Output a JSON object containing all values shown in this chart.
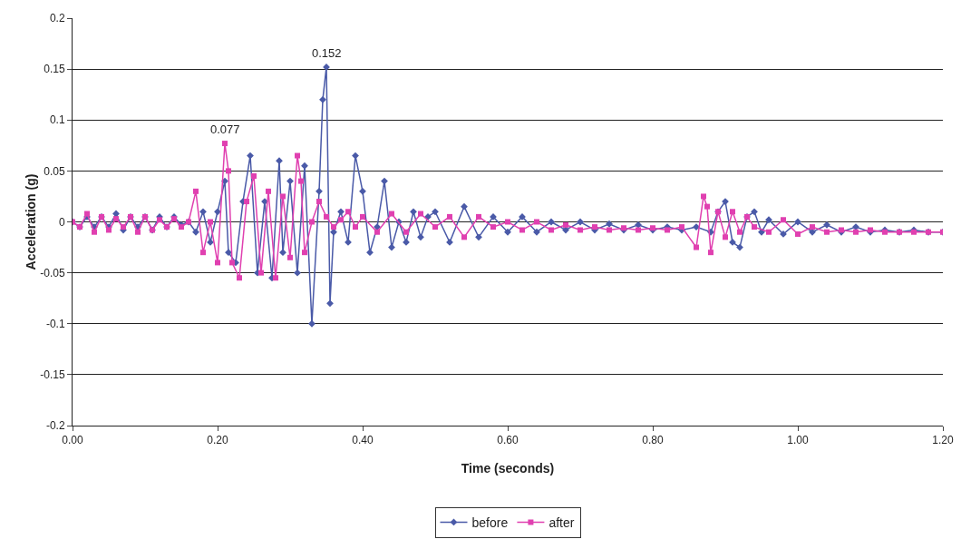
{
  "chart_data": {
    "type": "line",
    "xlabel": "Time (seconds)",
    "ylabel": "Acceleration (g)",
    "xlim": [
      0,
      1.2
    ],
    "xticks": [
      {
        "value": 0,
        "label": "0.00"
      },
      {
        "value": 0.2,
        "label": "0.20"
      },
      {
        "value": 0.4,
        "label": "0.40"
      },
      {
        "value": 0.6,
        "label": "0.60"
      },
      {
        "value": 0.8,
        "label": "0.80"
      },
      {
        "value": 1.0,
        "label": "1.00"
      },
      {
        "value": 1.2,
        "label": "1.20"
      }
    ],
    "ylim": [
      -0.2,
      0.2
    ],
    "yticks": [
      -0.2,
      -0.15,
      -0.1,
      -0.05,
      0,
      0.05,
      0.1,
      0.15,
      0.2
    ],
    "grid": "y",
    "legend": "bottom",
    "line_style": "solid",
    "annotations": [
      {
        "text": "0.152",
        "x": 0.35,
        "y": 0.152
      },
      {
        "text": "0.077",
        "x": 0.21,
        "y": 0.077
      }
    ],
    "series": [
      {
        "name": "before",
        "color": "#4a5aa8",
        "marker": "diamond",
        "x": [
          0,
          0.01,
          0.02,
          0.03,
          0.04,
          0.05,
          0.06,
          0.07,
          0.08,
          0.09,
          0.1,
          0.11,
          0.12,
          0.13,
          0.14,
          0.15,
          0.16,
          0.17,
          0.18,
          0.19,
          0.2,
          0.21,
          0.215,
          0.225,
          0.235,
          0.245,
          0.255,
          0.265,
          0.275,
          0.285,
          0.29,
          0.3,
          0.31,
          0.32,
          0.33,
          0.34,
          0.345,
          0.35,
          0.355,
          0.36,
          0.37,
          0.38,
          0.39,
          0.4,
          0.41,
          0.42,
          0.43,
          0.44,
          0.45,
          0.46,
          0.47,
          0.48,
          0.49,
          0.5,
          0.52,
          0.54,
          0.56,
          0.58,
          0.6,
          0.62,
          0.64,
          0.66,
          0.68,
          0.7,
          0.72,
          0.74,
          0.76,
          0.78,
          0.8,
          0.82,
          0.84,
          0.86,
          0.88,
          0.89,
          0.9,
          0.91,
          0.92,
          0.93,
          0.94,
          0.95,
          0.96,
          0.98,
          1.0,
          1.02,
          1.04,
          1.06,
          1.08,
          1.1,
          1.12,
          1.14,
          1.16,
          1.18,
          1.2
        ],
        "values": [
          0,
          -0.005,
          0.005,
          -0.005,
          0.005,
          -0.005,
          0.008,
          -0.008,
          0.005,
          -0.005,
          0.005,
          -0.008,
          0.005,
          -0.005,
          0.005,
          -0.003,
          0,
          -0.01,
          0.01,
          -0.02,
          0.01,
          0.04,
          -0.03,
          -0.04,
          0.02,
          0.065,
          -0.05,
          0.02,
          -0.055,
          0.06,
          -0.03,
          0.04,
          -0.05,
          0.055,
          -0.1,
          0.03,
          0.12,
          0.152,
          -0.08,
          -0.01,
          0.01,
          -0.02,
          0.065,
          0.03,
          -0.03,
          -0.005,
          0.04,
          -0.025,
          0,
          -0.02,
          0.01,
          -0.015,
          0.005,
          0.01,
          -0.02,
          0.015,
          -0.015,
          0.005,
          -0.01,
          0.005,
          -0.01,
          0,
          -0.008,
          0,
          -0.008,
          -0.002,
          -0.008,
          -0.003,
          -0.008,
          -0.005,
          -0.008,
          -0.005,
          -0.01,
          0.01,
          0.02,
          -0.02,
          -0.025,
          0.005,
          0.01,
          -0.01,
          0.002,
          -0.012,
          0,
          -0.01,
          -0.003,
          -0.01,
          -0.005,
          -0.01,
          -0.008,
          -0.01,
          -0.008,
          -0.01,
          -0.01
        ]
      },
      {
        "name": "after",
        "color": "#e040b0",
        "marker": "square",
        "x": [
          0,
          0.01,
          0.02,
          0.03,
          0.04,
          0.05,
          0.06,
          0.07,
          0.08,
          0.09,
          0.1,
          0.11,
          0.12,
          0.13,
          0.14,
          0.15,
          0.16,
          0.17,
          0.18,
          0.19,
          0.2,
          0.21,
          0.215,
          0.22,
          0.23,
          0.24,
          0.25,
          0.26,
          0.27,
          0.28,
          0.29,
          0.3,
          0.31,
          0.315,
          0.32,
          0.33,
          0.34,
          0.35,
          0.36,
          0.37,
          0.38,
          0.39,
          0.4,
          0.42,
          0.44,
          0.46,
          0.48,
          0.5,
          0.52,
          0.54,
          0.56,
          0.58,
          0.6,
          0.62,
          0.64,
          0.66,
          0.68,
          0.7,
          0.72,
          0.74,
          0.76,
          0.78,
          0.8,
          0.82,
          0.84,
          0.86,
          0.87,
          0.875,
          0.88,
          0.89,
          0.9,
          0.91,
          0.92,
          0.93,
          0.94,
          0.96,
          0.98,
          1.0,
          1.02,
          1.04,
          1.06,
          1.08,
          1.1,
          1.12,
          1.14,
          1.16,
          1.18,
          1.2
        ],
        "values": [
          0,
          -0.005,
          0.008,
          -0.01,
          0.005,
          -0.008,
          0.003,
          -0.005,
          0.005,
          -0.01,
          0.005,
          -0.008,
          0.002,
          -0.005,
          0.003,
          -0.005,
          0,
          0.03,
          -0.03,
          0,
          -0.04,
          0.077,
          0.05,
          -0.04,
          -0.055,
          0.02,
          0.045,
          -0.05,
          0.03,
          -0.055,
          0.025,
          -0.035,
          0.065,
          0.04,
          -0.03,
          0,
          0.02,
          0.005,
          -0.005,
          0.002,
          0.01,
          -0.005,
          0.005,
          -0.01,
          0.008,
          -0.01,
          0.008,
          -0.005,
          0.005,
          -0.015,
          0.005,
          -0.005,
          0,
          -0.008,
          0,
          -0.008,
          -0.003,
          -0.008,
          -0.005,
          -0.008,
          -0.006,
          -0.008,
          -0.006,
          -0.008,
          -0.005,
          -0.025,
          0.025,
          0.015,
          -0.03,
          0.01,
          -0.015,
          0.01,
          -0.01,
          0.005,
          -0.005,
          -0.01,
          0.002,
          -0.012,
          -0.005,
          -0.01,
          -0.008,
          -0.01,
          -0.008,
          -0.01,
          -0.01,
          -0.01,
          -0.01,
          -0.01
        ]
      }
    ]
  }
}
